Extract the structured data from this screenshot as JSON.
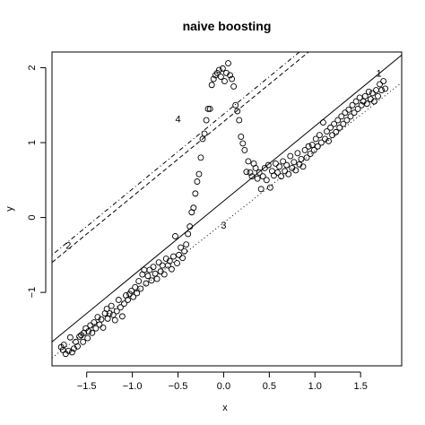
{
  "chart_data": {
    "type": "scatter",
    "title": "naive boosting",
    "xlabel": "x",
    "ylabel": "y",
    "xlim": [
      -1.88,
      1.95
    ],
    "ylim": [
      -1.98,
      2.21
    ],
    "x_ticks": [
      -1.5,
      -1.0,
      -0.5,
      0.0,
      0.5,
      1.0,
      1.5
    ],
    "x_tick_labels": [
      "−1.5",
      "−1.0",
      "−0.5",
      "0.0",
      "0.5",
      "1.0",
      "1.5"
    ],
    "y_ticks": [
      -1,
      0,
      1,
      2
    ],
    "y_tick_labels": [
      "−1",
      "0",
      "1",
      "2"
    ],
    "grid": false,
    "points": [
      [
        -1.78,
        -1.73
      ],
      [
        -1.76,
        -1.77
      ],
      [
        -1.75,
        -1.7
      ],
      [
        -1.73,
        -1.82
      ],
      [
        -1.7,
        -1.78
      ],
      [
        -1.68,
        -1.6
      ],
      [
        -1.66,
        -1.8
      ],
      [
        -1.64,
        -1.75
      ],
      [
        -1.62,
        -1.66
      ],
      [
        -1.6,
        -1.72
      ],
      [
        -1.58,
        -1.59
      ],
      [
        -1.56,
        -1.57
      ],
      [
        -1.54,
        -1.66
      ],
      [
        -1.53,
        -1.54
      ],
      [
        -1.51,
        -1.48
      ],
      [
        -1.49,
        -1.61
      ],
      [
        -1.48,
        -1.52
      ],
      [
        -1.46,
        -1.44
      ],
      [
        -1.44,
        -1.54
      ],
      [
        -1.42,
        -1.4
      ],
      [
        -1.4,
        -1.48
      ],
      [
        -1.38,
        -1.33
      ],
      [
        -1.36,
        -1.43
      ],
      [
        -1.34,
        -1.36
      ],
      [
        -1.32,
        -1.47
      ],
      [
        -1.3,
        -1.28
      ],
      [
        -1.28,
        -1.22
      ],
      [
        -1.27,
        -1.35
      ],
      [
        -1.25,
        -1.28
      ],
      [
        -1.23,
        -1.18
      ],
      [
        -1.21,
        -1.3
      ],
      [
        -1.19,
        -1.37
      ],
      [
        -1.17,
        -1.25
      ],
      [
        -1.15,
        -1.1
      ],
      [
        -1.13,
        -1.2
      ],
      [
        -1.11,
        -1.32
      ],
      [
        -1.09,
        -1.15
      ],
      [
        -1.07,
        -1.04
      ],
      [
        -1.05,
        -1.1
      ],
      [
        -1.03,
        -1.02
      ],
      [
        -1.01,
        -0.98
      ],
      [
        -0.99,
        -1.06
      ],
      [
        -0.97,
        -0.93
      ],
      [
        -0.95,
        -1.01
      ],
      [
        -0.93,
        -0.85
      ],
      [
        -0.91,
        -0.95
      ],
      [
        -0.89,
        -0.76
      ],
      [
        -0.87,
        -0.7
      ],
      [
        -0.85,
        -0.88
      ],
      [
        -0.83,
        -0.78
      ],
      [
        -0.81,
        -0.7
      ],
      [
        -0.79,
        -0.84
      ],
      [
        -0.77,
        -0.66
      ],
      [
        -0.75,
        -0.75
      ],
      [
        -0.73,
        -0.82
      ],
      [
        -0.71,
        -0.6
      ],
      [
        -0.69,
        -0.72
      ],
      [
        -0.67,
        -0.64
      ],
      [
        -0.65,
        -0.76
      ],
      [
        -0.63,
        -0.55
      ],
      [
        -0.61,
        -0.64
      ],
      [
        -0.59,
        -0.58
      ],
      [
        -0.57,
        -0.69
      ],
      [
        -0.55,
        -0.52
      ],
      [
        -0.53,
        -0.25
      ],
      [
        -0.51,
        -0.61
      ],
      [
        -0.49,
        -0.5
      ],
      [
        -0.47,
        -0.4
      ],
      [
        -0.45,
        -0.54
      ],
      [
        -0.43,
        -0.45
      ],
      [
        -0.41,
        -0.36
      ],
      [
        -0.39,
        -0.22
      ],
      [
        -0.37,
        -0.12
      ],
      [
        -0.35,
        0.07
      ],
      [
        -0.33,
        0.13
      ],
      [
        -0.31,
        0.32
      ],
      [
        -0.29,
        0.48
      ],
      [
        -0.27,
        0.58
      ],
      [
        -0.25,
        0.8
      ],
      [
        -0.23,
        1.05
      ],
      [
        -0.21,
        1.12
      ],
      [
        -0.19,
        1.3
      ],
      [
        -0.17,
        1.45
      ],
      [
        -0.15,
        1.45
      ],
      [
        -0.13,
        1.77
      ],
      [
        -0.11,
        1.85
      ],
      [
        -0.09,
        1.9
      ],
      [
        -0.07,
        1.93
      ],
      [
        -0.05,
        1.97
      ],
      [
        -0.03,
        1.88
      ],
      [
        -0.01,
        1.99
      ],
      [
        0.01,
        1.82
      ],
      [
        0.03,
        1.93
      ],
      [
        0.05,
        2.06
      ],
      [
        0.07,
        1.9
      ],
      [
        0.09,
        1.85
      ],
      [
        0.11,
        1.75
      ],
      [
        0.13,
        1.5
      ],
      [
        0.15,
        1.42
      ],
      [
        0.17,
        1.3
      ],
      [
        0.19,
        1.08
      ],
      [
        0.21,
        0.99
      ],
      [
        0.23,
        0.9
      ],
      [
        0.25,
        0.61
      ],
      [
        0.27,
        0.75
      ],
      [
        0.29,
        0.6
      ],
      [
        0.31,
        0.55
      ],
      [
        0.33,
        0.72
      ],
      [
        0.35,
        0.66
      ],
      [
        0.37,
        0.52
      ],
      [
        0.39,
        0.6
      ],
      [
        0.41,
        0.38
      ],
      [
        0.43,
        0.55
      ],
      [
        0.45,
        0.66
      ],
      [
        0.47,
        0.5
      ],
      [
        0.49,
        0.7
      ],
      [
        0.51,
        0.4
      ],
      [
        0.53,
        0.62
      ],
      [
        0.55,
        0.56
      ],
      [
        0.57,
        0.72
      ],
      [
        0.59,
        0.6
      ],
      [
        0.61,
        0.68
      ],
      [
        0.63,
        0.55
      ],
      [
        0.65,
        0.75
      ],
      [
        0.67,
        0.62
      ],
      [
        0.69,
        0.7
      ],
      [
        0.71,
        0.58
      ],
      [
        0.73,
        0.82
      ],
      [
        0.75,
        0.66
      ],
      [
        0.77,
        0.74
      ],
      [
        0.79,
        0.63
      ],
      [
        0.81,
        0.86
      ],
      [
        0.83,
        0.71
      ],
      [
        0.85,
        0.78
      ],
      [
        0.87,
        0.68
      ],
      [
        0.89,
        0.9
      ],
      [
        0.91,
        0.8
      ],
      [
        0.93,
        0.95
      ],
      [
        0.95,
        0.85
      ],
      [
        0.97,
        0.97
      ],
      [
        0.99,
        0.9
      ],
      [
        1.01,
        1.05
      ],
      [
        1.03,
        0.95
      ],
      [
        1.05,
        1.1
      ],
      [
        1.07,
        1.0
      ],
      [
        1.09,
        1.27
      ],
      [
        1.11,
        1.05
      ],
      [
        1.13,
        1.15
      ],
      [
        1.15,
        1.02
      ],
      [
        1.17,
        1.2
      ],
      [
        1.19,
        1.1
      ],
      [
        1.21,
        1.25
      ],
      [
        1.23,
        1.14
      ],
      [
        1.25,
        1.3
      ],
      [
        1.27,
        1.2
      ],
      [
        1.29,
        1.35
      ],
      [
        1.31,
        1.25
      ],
      [
        1.33,
        1.4
      ],
      [
        1.35,
        1.3
      ],
      [
        1.37,
        1.44
      ],
      [
        1.39,
        1.35
      ],
      [
        1.41,
        1.5
      ],
      [
        1.43,
        1.4
      ],
      [
        1.45,
        1.55
      ],
      [
        1.47,
        1.45
      ],
      [
        1.49,
        1.6
      ],
      [
        1.51,
        1.5
      ],
      [
        1.53,
        1.55
      ],
      [
        1.55,
        1.62
      ],
      [
        1.57,
        1.52
      ],
      [
        1.59,
        1.68
      ],
      [
        1.61,
        1.58
      ],
      [
        1.63,
        1.66
      ],
      [
        1.65,
        1.55
      ],
      [
        1.67,
        1.7
      ],
      [
        1.69,
        1.62
      ],
      [
        1.71,
        1.78
      ],
      [
        1.73,
        1.7
      ],
      [
        1.75,
        1.82
      ],
      [
        1.77,
        1.72
      ]
    ],
    "lines": [
      {
        "label": "1",
        "style": "solid",
        "intercept": 0.22,
        "slope": 1.0,
        "label_at": [
          1.7,
          1.93
        ]
      },
      {
        "label": "2",
        "style": "dashed",
        "intercept": 1.28,
        "slope": 1.0,
        "label_at": [
          -1.7,
          -0.37
        ]
      },
      {
        "label": "3",
        "style": "dotted",
        "intercept": -0.07,
        "slope": 0.96,
        "label_at": [
          0.0,
          -0.1
        ]
      },
      {
        "label": "4",
        "style": "dotdash",
        "intercept": 1.38,
        "slope": 1.0,
        "label_at": [
          -0.5,
          1.32
        ]
      }
    ]
  }
}
